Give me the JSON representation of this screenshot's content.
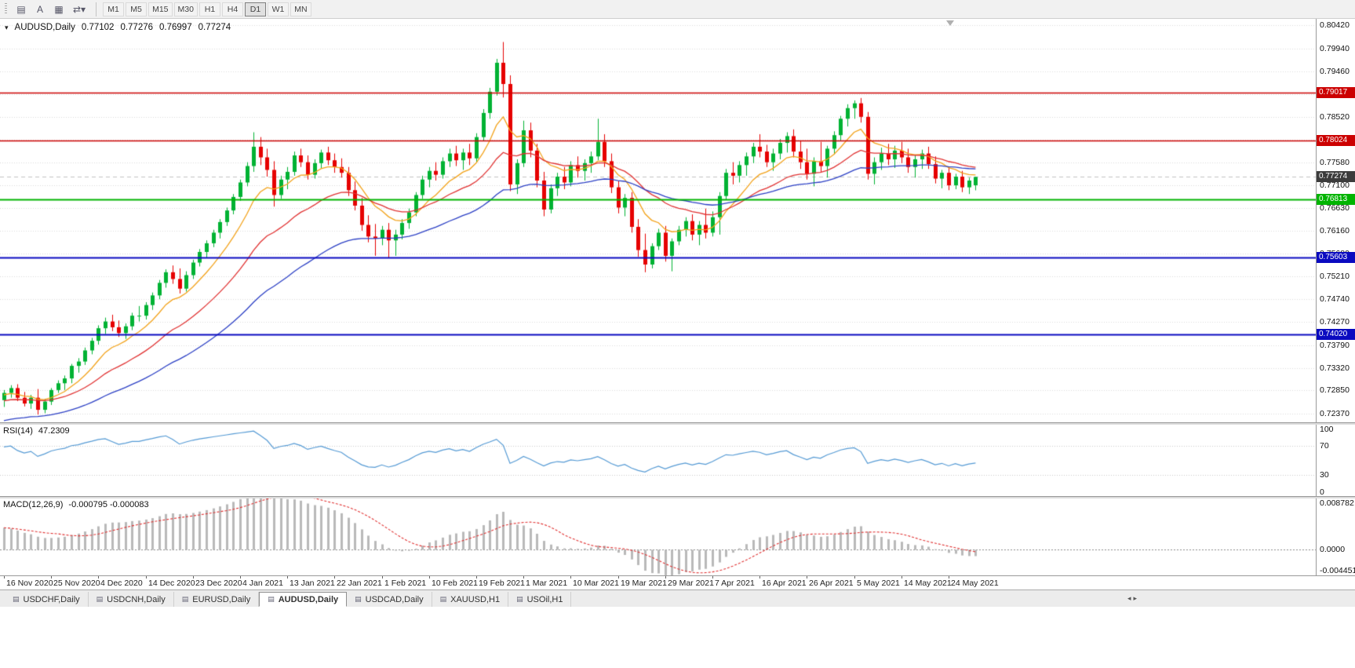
{
  "toolbar": {
    "icon_buttons": [
      {
        "name": "chart-grid-icon",
        "glyph": "▤"
      },
      {
        "name": "text-label-icon",
        "glyph": "A"
      },
      {
        "name": "template-icon",
        "glyph": "▦"
      },
      {
        "name": "timeframe-switch-icon",
        "glyph": "⇄▾"
      }
    ],
    "timeframes": [
      "M1",
      "M5",
      "M15",
      "M30",
      "H1",
      "H4",
      "D1",
      "W1",
      "MN"
    ],
    "selected_timeframe": "D1"
  },
  "chart": {
    "symbol_label": "AUDUSD,Daily",
    "ohlc": {
      "open": "0.77102",
      "high": "0.77276",
      "low": "0.76997",
      "close": "0.77274"
    },
    "price_axis": {
      "top_price": 0.8055,
      "bottom_price": 0.72191,
      "ticks": [
        "0.80420",
        "0.79940",
        "0.79460",
        "0.78990",
        "0.78520",
        "0.78050",
        "0.77580",
        "0.77100",
        "0.76630",
        "0.76160",
        "0.75680",
        "0.75210",
        "0.74740",
        "0.74270",
        "0.73790",
        "0.73320",
        "0.72850",
        "0.72370"
      ]
    },
    "hlines": [
      {
        "price": 0.79017,
        "label": "0.79017",
        "color": "#cc0000",
        "width": 1.6
      },
      {
        "price": 0.78024,
        "label": "0.78024",
        "color": "#cc0000",
        "width": 1.6
      },
      {
        "price": 0.76813,
        "label": "0.76813",
        "color": "#00b400",
        "width": 2.2
      },
      {
        "price": 0.75603,
        "label": "0.75603",
        "color": "#0a0ac0",
        "width": 2
      },
      {
        "price": 0.7402,
        "label": "0.74020",
        "color": "#0a0ac0",
        "width": 2
      }
    ],
    "current_price": {
      "value": 0.77274,
      "label": "0.77274",
      "badge_color": "#3c3c3c"
    }
  },
  "rsi": {
    "label": "RSI(14)",
    "value": "47.2309",
    "color": "#559ad4",
    "levels": [
      70,
      30
    ],
    "ticks": [
      {
        "v": 100,
        "t": "100"
      },
      {
        "v": 70,
        "t": "70"
      },
      {
        "v": 30,
        "t": "30"
      },
      {
        "v": 0,
        "t": "0"
      }
    ]
  },
  "macd": {
    "label": "MACD(12,26,9)",
    "values": "-0.000795 -0.000083",
    "scale_max": 0.008782,
    "scale_min": -0.004451,
    "histogram_color": "#b9b9b9",
    "signal_color": "#e03131",
    "ticks": [
      {
        "v": 0.008782,
        "t": "0.008782"
      },
      {
        "v": 0,
        "t": "0.0000"
      },
      {
        "v": -0.004451,
        "t": "-0.004451"
      }
    ]
  },
  "tabs": {
    "items": [
      "USDCHF,Daily",
      "USDCNH,Daily",
      "EURUSD,Daily",
      "AUDUSD,Daily",
      "USDCAD,Daily",
      "XAUUSD,H1",
      "USOil,H1"
    ],
    "active": "AUDUSD,Daily"
  },
  "chart_data": {
    "type": "candlestick",
    "symbol": "AUDUSD",
    "timeframe": "Daily",
    "up_color": "#00b233",
    "down_color": "#e60000",
    "candles_per_label": 7,
    "x_labels": [
      "16 Nov 2020",
      "25 Nov 2020",
      "4 Dec 2020",
      "14 Dec 2020",
      "23 Dec 2020",
      "4 Jan 2021",
      "13 Jan 2021",
      "22 Jan 2021",
      "1 Feb 2021",
      "10 Feb 2021",
      "19 Feb 2021",
      "1 Mar 2021",
      "10 Mar 2021",
      "19 Mar 2021",
      "29 Mar 2021",
      "7 Apr 2021",
      "16 Apr 2021",
      "26 Apr 2021",
      "5 May 2021",
      "14 May 2021",
      "24 May 2021"
    ],
    "moving_averages": [
      {
        "period": 9,
        "color": "#f2a21a",
        "seed": -0.0005
      },
      {
        "period": 22,
        "color": "#e03131",
        "seed": -0.0018
      },
      {
        "period": 45,
        "color": "#2b3fc4",
        "seed": -0.006
      }
    ],
    "candles": [
      [
        0.7265,
        0.7286,
        0.7251,
        0.728
      ],
      [
        0.728,
        0.7296,
        0.727,
        0.729
      ],
      [
        0.729,
        0.7298,
        0.7263,
        0.727
      ],
      [
        0.727,
        0.7282,
        0.7252,
        0.7258
      ],
      [
        0.7258,
        0.7276,
        0.7247,
        0.727
      ],
      [
        0.727,
        0.7288,
        0.7235,
        0.7245
      ],
      [
        0.7245,
        0.7268,
        0.7238,
        0.7262
      ],
      [
        0.7262,
        0.729,
        0.7255,
        0.7286
      ],
      [
        0.7286,
        0.7306,
        0.728,
        0.73
      ],
      [
        0.73,
        0.7316,
        0.7286,
        0.731
      ],
      [
        0.731,
        0.734,
        0.73,
        0.7336
      ],
      [
        0.7336,
        0.7352,
        0.7322,
        0.7345
      ],
      [
        0.7345,
        0.7374,
        0.7338,
        0.7368
      ],
      [
        0.7368,
        0.7394,
        0.736,
        0.7388
      ],
      [
        0.7388,
        0.742,
        0.738,
        0.7414
      ],
      [
        0.7414,
        0.7436,
        0.7402,
        0.7428
      ],
      [
        0.7428,
        0.7442,
        0.7408,
        0.7416
      ],
      [
        0.7416,
        0.743,
        0.7396,
        0.7404
      ],
      [
        0.7404,
        0.7424,
        0.7392,
        0.7418
      ],
      [
        0.7418,
        0.7446,
        0.741,
        0.744
      ],
      [
        0.744,
        0.746,
        0.7428,
        0.744
      ],
      [
        0.744,
        0.7468,
        0.7432,
        0.7462
      ],
      [
        0.7462,
        0.7488,
        0.7452,
        0.7482
      ],
      [
        0.7482,
        0.7514,
        0.7474,
        0.7508
      ],
      [
        0.7508,
        0.7536,
        0.7498,
        0.753
      ],
      [
        0.753,
        0.7544,
        0.7506,
        0.7516
      ],
      [
        0.7516,
        0.7538,
        0.7486,
        0.7496
      ],
      [
        0.7496,
        0.7532,
        0.749,
        0.7524
      ],
      [
        0.7524,
        0.7556,
        0.7516,
        0.755
      ],
      [
        0.755,
        0.7578,
        0.7542,
        0.7572
      ],
      [
        0.7572,
        0.7596,
        0.756,
        0.759
      ],
      [
        0.759,
        0.7618,
        0.7582,
        0.7612
      ],
      [
        0.7612,
        0.764,
        0.76,
        0.7634
      ],
      [
        0.7634,
        0.7664,
        0.7626,
        0.7658
      ],
      [
        0.7658,
        0.7692,
        0.765,
        0.7686
      ],
      [
        0.7686,
        0.7722,
        0.7678,
        0.7716
      ],
      [
        0.7716,
        0.7758,
        0.7708,
        0.775
      ],
      [
        0.775,
        0.782,
        0.7738,
        0.779
      ],
      [
        0.779,
        0.781,
        0.7752,
        0.7768
      ],
      [
        0.7768,
        0.7786,
        0.7728,
        0.7742
      ],
      [
        0.7742,
        0.776,
        0.7666,
        0.769
      ],
      [
        0.769,
        0.773,
        0.7682,
        0.7722
      ],
      [
        0.7722,
        0.7748,
        0.7702,
        0.7738
      ],
      [
        0.7738,
        0.778,
        0.773,
        0.7772
      ],
      [
        0.7772,
        0.7786,
        0.7748,
        0.7758
      ],
      [
        0.7758,
        0.7772,
        0.7722,
        0.7732
      ],
      [
        0.7732,
        0.7764,
        0.7724,
        0.7756
      ],
      [
        0.7756,
        0.7784,
        0.7746,
        0.7778
      ],
      [
        0.7778,
        0.779,
        0.7752,
        0.7762
      ],
      [
        0.7762,
        0.7776,
        0.7736,
        0.7748
      ],
      [
        0.7748,
        0.7766,
        0.7726,
        0.7736
      ],
      [
        0.7736,
        0.7748,
        0.7688,
        0.77
      ],
      [
        0.77,
        0.7718,
        0.7658,
        0.7668
      ],
      [
        0.7668,
        0.7684,
        0.7616,
        0.7628
      ],
      [
        0.7628,
        0.7648,
        0.7592,
        0.7604
      ],
      [
        0.7604,
        0.763,
        0.7564,
        0.76
      ],
      [
        0.76,
        0.7626,
        0.7586,
        0.7618
      ],
      [
        0.7618,
        0.7632,
        0.756,
        0.7596
      ],
      [
        0.7596,
        0.7618,
        0.7564,
        0.7608
      ],
      [
        0.7608,
        0.764,
        0.7598,
        0.7632
      ],
      [
        0.7632,
        0.7662,
        0.762,
        0.7654
      ],
      [
        0.7654,
        0.7696,
        0.7646,
        0.769
      ],
      [
        0.769,
        0.773,
        0.7682,
        0.7722
      ],
      [
        0.7722,
        0.7748,
        0.7706,
        0.774
      ],
      [
        0.774,
        0.7758,
        0.772,
        0.7732
      ],
      [
        0.7732,
        0.7768,
        0.7724,
        0.776
      ],
      [
        0.776,
        0.7786,
        0.7748,
        0.7776
      ],
      [
        0.7776,
        0.7792,
        0.775,
        0.7762
      ],
      [
        0.7762,
        0.7786,
        0.7742,
        0.7778
      ],
      [
        0.7778,
        0.7796,
        0.7752,
        0.7766
      ],
      [
        0.7766,
        0.7818,
        0.7758,
        0.781
      ],
      [
        0.781,
        0.7868,
        0.7802,
        0.786
      ],
      [
        0.786,
        0.7912,
        0.7848,
        0.7904
      ],
      [
        0.7904,
        0.7972,
        0.7896,
        0.7964
      ],
      [
        0.7964,
        0.8007,
        0.7892,
        0.792
      ],
      [
        0.792,
        0.7938,
        0.7698,
        0.7712
      ],
      [
        0.7712,
        0.7764,
        0.7692,
        0.7756
      ],
      [
        0.7756,
        0.7844,
        0.7748,
        0.7824
      ],
      [
        0.7824,
        0.784,
        0.7768,
        0.7782
      ],
      [
        0.7782,
        0.7796,
        0.7706,
        0.772
      ],
      [
        0.772,
        0.7738,
        0.7646,
        0.766
      ],
      [
        0.766,
        0.7712,
        0.7652,
        0.7704
      ],
      [
        0.7704,
        0.7736,
        0.7688,
        0.7728
      ],
      [
        0.7728,
        0.7748,
        0.7702,
        0.7716
      ],
      [
        0.7716,
        0.776,
        0.7708,
        0.7752
      ],
      [
        0.7752,
        0.777,
        0.7726,
        0.774
      ],
      [
        0.774,
        0.7764,
        0.772,
        0.7756
      ],
      [
        0.7756,
        0.778,
        0.7736,
        0.777
      ],
      [
        0.777,
        0.7848,
        0.7762,
        0.78
      ],
      [
        0.78,
        0.7816,
        0.7748,
        0.776
      ],
      [
        0.776,
        0.7776,
        0.7694,
        0.7706
      ],
      [
        0.7706,
        0.772,
        0.7652,
        0.7664
      ],
      [
        0.7664,
        0.7692,
        0.7646,
        0.7684
      ],
      [
        0.7684,
        0.7696,
        0.7612,
        0.7624
      ],
      [
        0.7624,
        0.764,
        0.7562,
        0.7576
      ],
      [
        0.7576,
        0.761,
        0.753,
        0.7546
      ],
      [
        0.7546,
        0.759,
        0.7538,
        0.7584
      ],
      [
        0.7584,
        0.762,
        0.7576,
        0.7612
      ],
      [
        0.7612,
        0.7626,
        0.7552,
        0.7564
      ],
      [
        0.7564,
        0.76,
        0.7532,
        0.7594
      ],
      [
        0.7594,
        0.7626,
        0.7586,
        0.7618
      ],
      [
        0.7618,
        0.7644,
        0.7604,
        0.7636
      ],
      [
        0.7636,
        0.765,
        0.7596,
        0.7608
      ],
      [
        0.7608,
        0.7636,
        0.7586,
        0.7628
      ],
      [
        0.7628,
        0.7662,
        0.76,
        0.7612
      ],
      [
        0.7612,
        0.7656,
        0.7604,
        0.7644
      ],
      [
        0.7644,
        0.7696,
        0.7608,
        0.7688
      ],
      [
        0.7688,
        0.7744,
        0.768,
        0.7736
      ],
      [
        0.7736,
        0.7758,
        0.7712,
        0.773
      ],
      [
        0.773,
        0.776,
        0.7716,
        0.7752
      ],
      [
        0.7752,
        0.7778,
        0.773,
        0.777
      ],
      [
        0.777,
        0.7798,
        0.7756,
        0.779
      ],
      [
        0.779,
        0.7816,
        0.7768,
        0.778
      ],
      [
        0.778,
        0.7794,
        0.7748,
        0.7758
      ],
      [
        0.7758,
        0.7786,
        0.774,
        0.7776
      ],
      [
        0.7776,
        0.7806,
        0.7764,
        0.7798
      ],
      [
        0.7798,
        0.782,
        0.7778,
        0.7812
      ],
      [
        0.7812,
        0.7826,
        0.7768,
        0.778
      ],
      [
        0.778,
        0.7802,
        0.7744,
        0.7758
      ],
      [
        0.7758,
        0.7786,
        0.7722,
        0.7734
      ],
      [
        0.7734,
        0.7768,
        0.7708,
        0.776
      ],
      [
        0.776,
        0.78,
        0.7738,
        0.775
      ],
      [
        0.775,
        0.7792,
        0.7726,
        0.7786
      ],
      [
        0.7786,
        0.7822,
        0.7774,
        0.7814
      ],
      [
        0.7814,
        0.7854,
        0.7802,
        0.7848
      ],
      [
        0.7848,
        0.7878,
        0.7832,
        0.787
      ],
      [
        0.787,
        0.7886,
        0.7848,
        0.788
      ],
      [
        0.788,
        0.7891,
        0.784,
        0.7852
      ],
      [
        0.7852,
        0.7862,
        0.7722,
        0.7734
      ],
      [
        0.7734,
        0.7768,
        0.7712,
        0.7758
      ],
      [
        0.7758,
        0.7788,
        0.7742,
        0.7776
      ],
      [
        0.7776,
        0.7796,
        0.7752,
        0.7764
      ],
      [
        0.7764,
        0.7792,
        0.7746,
        0.7782
      ],
      [
        0.7782,
        0.78,
        0.7756,
        0.7768
      ],
      [
        0.7768,
        0.7786,
        0.7736,
        0.7748
      ],
      [
        0.7748,
        0.7772,
        0.7726,
        0.7764
      ],
      [
        0.7764,
        0.7784,
        0.7744,
        0.7776
      ],
      [
        0.7776,
        0.779,
        0.7744,
        0.7754
      ],
      [
        0.7754,
        0.777,
        0.7714,
        0.7724
      ],
      [
        0.7724,
        0.7742,
        0.7704,
        0.7736
      ],
      [
        0.7736,
        0.7748,
        0.77,
        0.771
      ],
      [
        0.771,
        0.7734,
        0.7702,
        0.7728
      ],
      [
        0.7728,
        0.774,
        0.7696,
        0.7706
      ],
      [
        0.7706,
        0.7726,
        0.7692,
        0.772
      ],
      [
        0.77102,
        0.77276,
        0.76997,
        0.77274
      ]
    ]
  }
}
